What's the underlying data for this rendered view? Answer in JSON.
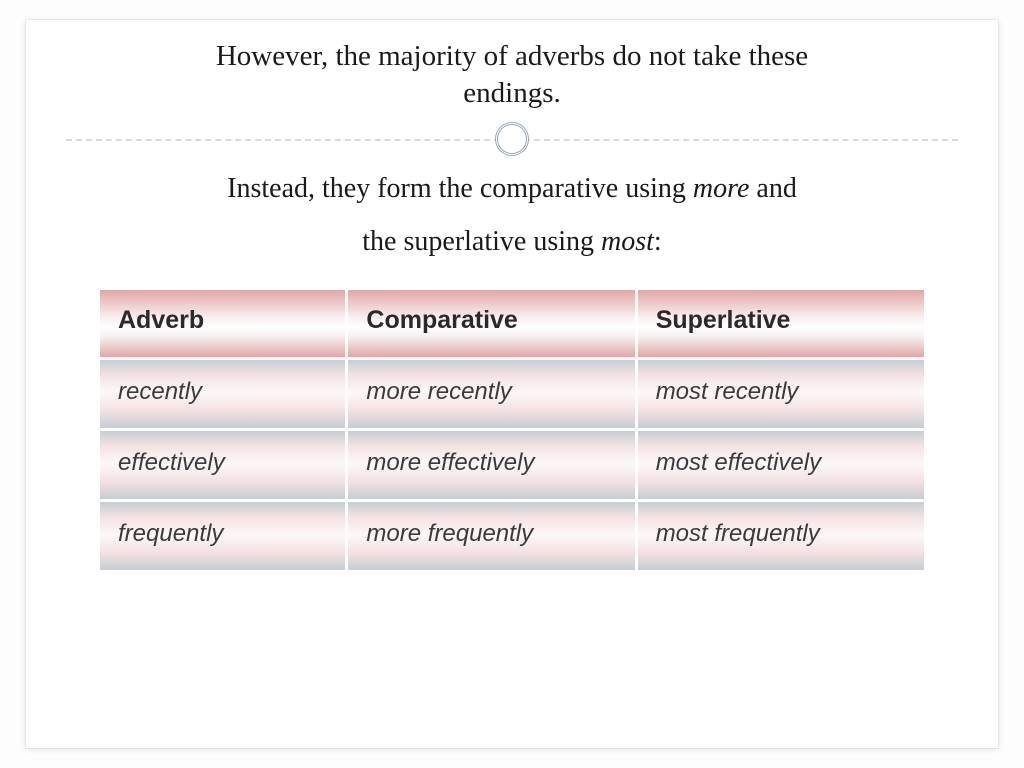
{
  "title": {
    "line1": "However, the majority of adverbs do not take these",
    "line2": "endings."
  },
  "subtitle": {
    "part1": "Instead, they form the comparative using ",
    "em1": "more",
    "part2": " and",
    "part3": "the superlative using ",
    "em2": "most",
    "part4": ":"
  },
  "table": {
    "headers": [
      "Adverb",
      "Comparative",
      "Superlative"
    ],
    "rows": [
      [
        "recently",
        "more recently",
        "most recently"
      ],
      [
        "effectively",
        "more effectively",
        "most effectively"
      ],
      [
        "frequently",
        "more frequently",
        "most frequently"
      ]
    ],
    "header_bg_gradient": [
      "#e1a7a6",
      "#f8eeee",
      "#ffffff",
      "#f8eeee",
      "#e1a7a6"
    ],
    "cell_bg_gradient": [
      "#c6cdd3",
      "#f3e2e2",
      "#fdf8f8",
      "#f3e2e2",
      "#c6cdd3"
    ],
    "header_fontsize": 25,
    "cell_fontsize": 24,
    "col_widths_pct": [
      30,
      35,
      35
    ]
  },
  "divider": {
    "line_color": "#d8d8d8",
    "circle_border_color": "#9aa9b2",
    "circle_bg": "#ffffff"
  },
  "typography": {
    "title_fontsize": 29,
    "subtitle_fontsize": 28,
    "title_font": "Georgia",
    "table_font": "Verdana"
  },
  "background_color": "#ffffff"
}
